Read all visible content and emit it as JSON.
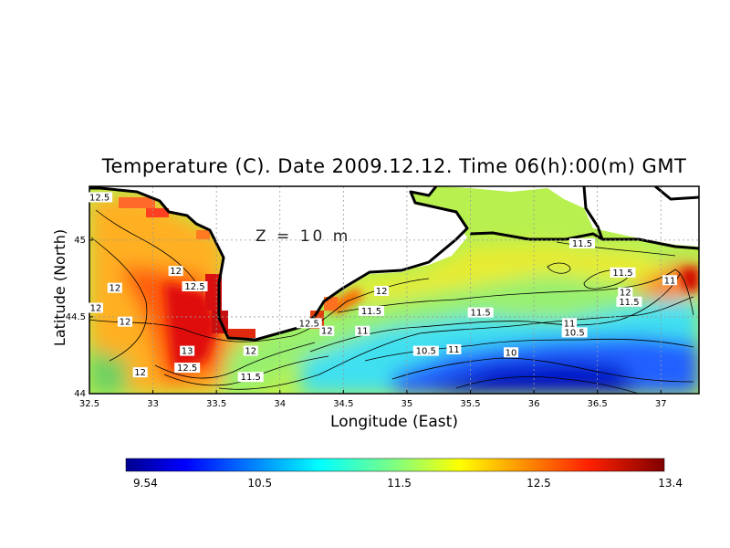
{
  "chart_data": {
    "type": "heatmap",
    "title": "Temperature (C). Date 2009.12.12. Time 06(h):00(m) GMT",
    "xlabel": "Longitude (East)",
    "ylabel": "Latitude (North)",
    "annotation": "Z = 10 m",
    "xlim": [
      32.5,
      37.3
    ],
    "ylim": [
      44.0,
      45.35
    ],
    "x_ticks": [
      "32.5",
      "33",
      "33.5",
      "34",
      "34.5",
      "35",
      "35.5",
      "36",
      "36.5",
      "37"
    ],
    "y_ticks": [
      "44",
      "44.5",
      "45"
    ],
    "grid": true,
    "colorbar": {
      "min": 9.54,
      "max": 13.4,
      "ticks": [
        "9.54",
        "10.5",
        "11.5",
        "12.5",
        "13.4"
      ],
      "colormap": "jet"
    },
    "contour_labels": [
      {
        "text": "12.5",
        "lon": 32.58,
        "lat": 45.27
      },
      {
        "text": "12",
        "lon": 33.18,
        "lat": 44.79
      },
      {
        "text": "12.5",
        "lon": 33.33,
        "lat": 44.69
      },
      {
        "text": "12",
        "lon": 32.7,
        "lat": 44.68
      },
      {
        "text": "12",
        "lon": 32.55,
        "lat": 44.55
      },
      {
        "text": "12",
        "lon": 32.78,
        "lat": 44.46
      },
      {
        "text": "13",
        "lon": 33.27,
        "lat": 44.27
      },
      {
        "text": "12.5",
        "lon": 33.27,
        "lat": 44.16
      },
      {
        "text": "12",
        "lon": 32.9,
        "lat": 44.13
      },
      {
        "text": "12",
        "lon": 33.77,
        "lat": 44.27
      },
      {
        "text": "11.5",
        "lon": 33.77,
        "lat": 44.1
      },
      {
        "text": "12.5",
        "lon": 34.23,
        "lat": 44.45
      },
      {
        "text": "12",
        "lon": 34.37,
        "lat": 44.4
      },
      {
        "text": "12",
        "lon": 34.8,
        "lat": 44.66
      },
      {
        "text": "11.5",
        "lon": 34.72,
        "lat": 44.53
      },
      {
        "text": "11",
        "lon": 34.65,
        "lat": 44.4
      },
      {
        "text": "10.5",
        "lon": 35.15,
        "lat": 44.27
      },
      {
        "text": "11",
        "lon": 35.37,
        "lat": 44.28
      },
      {
        "text": "11.5",
        "lon": 35.58,
        "lat": 44.52
      },
      {
        "text": "10",
        "lon": 35.82,
        "lat": 44.26
      },
      {
        "text": "11.5",
        "lon": 36.38,
        "lat": 44.97
      },
      {
        "text": "11.5",
        "lon": 36.7,
        "lat": 44.78
      },
      {
        "text": "12",
        "lon": 36.72,
        "lat": 44.65
      },
      {
        "text": "11.5",
        "lon": 36.75,
        "lat": 44.59
      },
      {
        "text": "11",
        "lon": 36.28,
        "lat": 44.45
      },
      {
        "text": "10.5",
        "lon": 36.32,
        "lat": 44.39
      },
      {
        "text": "11",
        "lon": 37.07,
        "lat": 44.73
      }
    ]
  },
  "colors": {
    "land": "#ffffff",
    "coastline": "#000000",
    "grid": "#9a9a9a"
  }
}
